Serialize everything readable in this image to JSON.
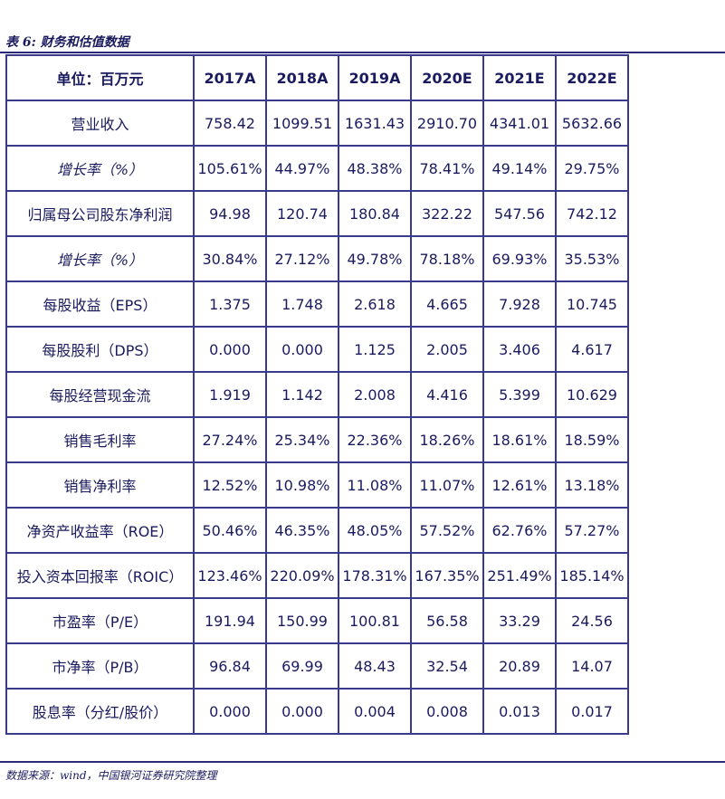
{
  "caption": "表 6: 财务和估值数据",
  "table": {
    "header": [
      "单位：百万元",
      "2017A",
      "2018A",
      "2019A",
      "2020E",
      "2021E",
      "2022E"
    ],
    "rows": [
      {
        "label": "营业收入",
        "italic": false,
        "values": [
          "758.42",
          "1099.51",
          "1631.43",
          "2910.70",
          "4341.01",
          "5632.66"
        ]
      },
      {
        "label": "增长率（%）",
        "italic": true,
        "values": [
          "105.61%",
          "44.97%",
          "48.38%",
          "78.41%",
          "49.14%",
          "29.75%"
        ]
      },
      {
        "label": "归属母公司股东净利润",
        "italic": false,
        "values": [
          "94.98",
          "120.74",
          "180.84",
          "322.22",
          "547.56",
          "742.12"
        ]
      },
      {
        "label": "增长率（%）",
        "italic": true,
        "values": [
          "30.84%",
          "27.12%",
          "49.78%",
          "78.18%",
          "69.93%",
          "35.53%"
        ]
      },
      {
        "label": "每股收益（EPS）",
        "italic": false,
        "values": [
          "1.375",
          "1.748",
          "2.618",
          "4.665",
          "7.928",
          "10.745"
        ]
      },
      {
        "label": "每股股利（DPS）",
        "italic": false,
        "values": [
          "0.000",
          "0.000",
          "1.125",
          "2.005",
          "3.406",
          "4.617"
        ]
      },
      {
        "label": "每股经营现金流",
        "italic": false,
        "values": [
          "1.919",
          "1.142",
          "2.008",
          "4.416",
          "5.399",
          "10.629"
        ]
      },
      {
        "label": "销售毛利率",
        "italic": false,
        "values": [
          "27.24%",
          "25.34%",
          "22.36%",
          "18.26%",
          "18.61%",
          "18.59%"
        ]
      },
      {
        "label": "销售净利率",
        "italic": false,
        "values": [
          "12.52%",
          "10.98%",
          "11.08%",
          "11.07%",
          "12.61%",
          "13.18%"
        ]
      },
      {
        "label": "净资产收益率（ROE）",
        "italic": false,
        "values": [
          "50.46%",
          "46.35%",
          "48.05%",
          "57.52%",
          "62.76%",
          "57.27%"
        ]
      },
      {
        "label": "投入资本回报率（ROIC）",
        "italic": false,
        "values": [
          "123.46%",
          "220.09%",
          "178.31%",
          "167.35%",
          "251.49%",
          "185.14%"
        ]
      },
      {
        "label": "市盈率（P/E）",
        "italic": false,
        "values": [
          "191.94",
          "150.99",
          "100.81",
          "56.58",
          "33.29",
          "24.56"
        ]
      },
      {
        "label": "市净率（P/B）",
        "italic": false,
        "values": [
          "96.84",
          "69.99",
          "48.43",
          "32.54",
          "20.89",
          "14.07"
        ]
      },
      {
        "label": "股息率（分红/股价）",
        "italic": false,
        "values": [
          "0.000",
          "0.000",
          "0.004",
          "0.008",
          "0.013",
          "0.017"
        ]
      }
    ]
  },
  "source": "数据来源：wind，中国银河证券研究院整理"
}
